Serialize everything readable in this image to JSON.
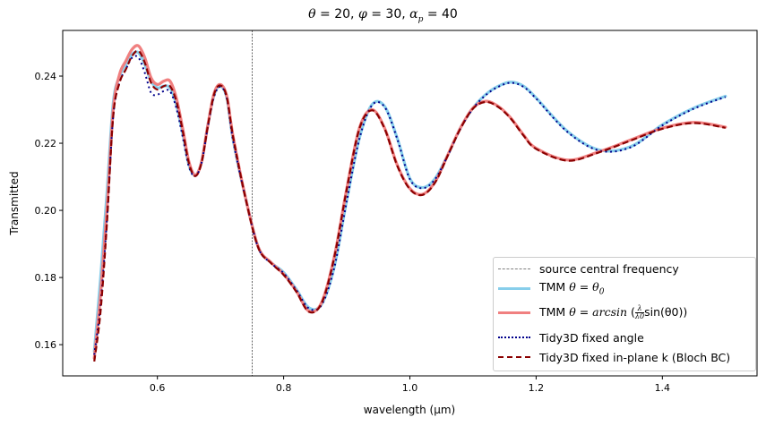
{
  "chart_data": {
    "type": "line",
    "title": "θ = 20, φ = 30, α_p = 40",
    "title_parts": {
      "theta": "θ",
      "theta_val": "20",
      "phi": "φ",
      "phi_val": "30",
      "alpha": "α",
      "alpha_sub": "p",
      "alpha_val": "40"
    },
    "xlabel": "wavelength (μm)",
    "ylabel": "Transmitted",
    "xlim": [
      0.45,
      1.55
    ],
    "ylim": [
      0.1507,
      0.2536
    ],
    "xticks": [
      0.6,
      0.8,
      1.0,
      1.2,
      1.4
    ],
    "xtick_labels": [
      "0.6",
      "0.8",
      "1.0",
      "1.2",
      "1.4"
    ],
    "yticks": [
      0.16,
      0.18,
      0.2,
      0.22,
      0.24
    ],
    "ytick_labels": [
      "0.16",
      "0.18",
      "0.20",
      "0.22",
      "0.24"
    ],
    "grid": false,
    "legend_placement": "lower-right",
    "vline": {
      "x": 0.75,
      "name": "source central frequency",
      "color": "#000000"
    },
    "x": [
      0.5,
      0.51,
      0.52,
      0.53,
      0.54,
      0.55,
      0.56,
      0.57,
      0.58,
      0.59,
      0.6,
      0.61,
      0.62,
      0.63,
      0.64,
      0.65,
      0.66,
      0.67,
      0.68,
      0.69,
      0.7,
      0.71,
      0.72,
      0.74,
      0.76,
      0.78,
      0.8,
      0.82,
      0.84,
      0.86,
      0.88,
      0.9,
      0.92,
      0.94,
      0.96,
      0.98,
      1.0,
      1.02,
      1.04,
      1.06,
      1.08,
      1.1,
      1.12,
      1.14,
      1.16,
      1.18,
      1.2,
      1.25,
      1.3,
      1.35,
      1.4,
      1.45,
      1.5
    ],
    "series": [
      {
        "name": "TMM θ = θ0",
        "color": "#87ceeb",
        "style": "solid",
        "values": [
          0.158,
          0.18,
          0.205,
          0.232,
          0.24,
          0.2435,
          0.2465,
          0.247,
          0.2435,
          0.2385,
          0.2365,
          0.237,
          0.2365,
          0.2315,
          0.223,
          0.2135,
          0.2105,
          0.2145,
          0.2255,
          0.2345,
          0.237,
          0.2335,
          0.221,
          0.2035,
          0.189,
          0.1845,
          0.1815,
          0.1765,
          0.171,
          0.172,
          0.183,
          0.203,
          0.2215,
          0.2315,
          0.231,
          0.2215,
          0.2095,
          0.2068,
          0.2095,
          0.2165,
          0.2245,
          0.2305,
          0.2345,
          0.237,
          0.2382,
          0.237,
          0.2335,
          0.2235,
          0.218,
          0.219,
          0.2255,
          0.2305,
          0.234
        ]
      },
      {
        "name": "TMM θ = arcsin(λ/λ0 sin(θ0))",
        "color": "#f08080",
        "style": "solid",
        "values": [
          0.156,
          0.175,
          0.2,
          0.23,
          0.2405,
          0.2445,
          0.248,
          0.249,
          0.2455,
          0.2395,
          0.2375,
          0.2385,
          0.2385,
          0.2335,
          0.2245,
          0.2145,
          0.2105,
          0.2145,
          0.2255,
          0.235,
          0.2375,
          0.234,
          0.222,
          0.2035,
          0.189,
          0.1845,
          0.181,
          0.176,
          0.17,
          0.1725,
          0.186,
          0.2065,
          0.2245,
          0.23,
          0.2245,
          0.2135,
          0.2065,
          0.2048,
          0.2085,
          0.2165,
          0.2245,
          0.2305,
          0.2325,
          0.231,
          0.2275,
          0.2225,
          0.2185,
          0.215,
          0.2175,
          0.221,
          0.2245,
          0.2262,
          0.2248
        ]
      },
      {
        "name": "Tidy3D fixed angle",
        "color": "#00008b",
        "style": "dotted",
        "values": [
          0.157,
          0.172,
          0.197,
          0.228,
          0.238,
          0.242,
          0.2455,
          0.2455,
          0.241,
          0.235,
          0.2345,
          0.2355,
          0.2355,
          0.2305,
          0.222,
          0.213,
          0.2102,
          0.2142,
          0.225,
          0.234,
          0.2368,
          0.2333,
          0.2208,
          0.2033,
          0.1888,
          0.1843,
          0.1813,
          0.1763,
          0.1708,
          0.1718,
          0.1828,
          0.2028,
          0.2213,
          0.2313,
          0.2308,
          0.2213,
          0.2093,
          0.2066,
          0.2093,
          0.2163,
          0.2243,
          0.2303,
          0.2343,
          0.2368,
          0.238,
          0.2368,
          0.2333,
          0.2233,
          0.2178,
          0.2188,
          0.2253,
          0.2303,
          0.2338
        ]
      },
      {
        "name": "Tidy3D fixed in-plane k (Bloch BC)",
        "color": "#8b0000",
        "style": "dashed",
        "values": [
          0.155,
          0.17,
          0.196,
          0.228,
          0.238,
          0.242,
          0.246,
          0.2475,
          0.244,
          0.238,
          0.236,
          0.237,
          0.237,
          0.2325,
          0.2238,
          0.214,
          0.2102,
          0.2142,
          0.2252,
          0.2347,
          0.2372,
          0.2337,
          0.2218,
          0.2033,
          0.1888,
          0.1843,
          0.1808,
          0.1758,
          0.1698,
          0.1723,
          0.1858,
          0.2063,
          0.2243,
          0.2298,
          0.2243,
          0.2133,
          0.2063,
          0.2046,
          0.2083,
          0.2163,
          0.2243,
          0.2303,
          0.2323,
          0.2308,
          0.2273,
          0.2223,
          0.2183,
          0.2148,
          0.2173,
          0.2208,
          0.2243,
          0.226,
          0.2246
        ]
      }
    ],
    "legend": {
      "vline": "source central frequency",
      "tmm1_prefix": "TMM",
      "tmm1_math": "θ = θ",
      "tmm1_sub": "0",
      "tmm2_prefix": "TMM",
      "tmm2_math": "θ = arcsin",
      "tmm2_num": "λ",
      "tmm2_den": "λ0",
      "tmm2_tail": "sin(θ0)",
      "tidy1": "Tidy3D fixed angle",
      "tidy2": "Tidy3D fixed in-plane k (Bloch BC)"
    }
  }
}
